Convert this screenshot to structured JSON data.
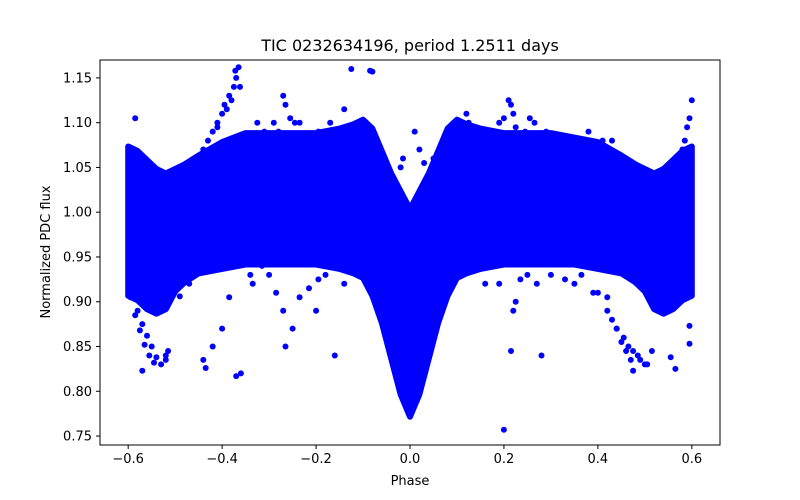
{
  "chart_data": {
    "type": "scatter",
    "title": "TIC 0232634196, period 1.2511 days",
    "xlabel": "Phase",
    "ylabel": "Normalized PDC flux",
    "xlim": [
      -0.66,
      0.66
    ],
    "ylim": [
      0.74,
      1.17
    ],
    "xticks": [
      -0.6,
      -0.4,
      -0.2,
      0.0,
      0.2,
      0.4,
      0.6
    ],
    "xtick_labels": [
      "−0.6",
      "−0.4",
      "−0.2",
      "0.0",
      "0.2",
      "0.4",
      "0.6"
    ],
    "yticks": [
      0.75,
      0.8,
      0.85,
      0.9,
      0.95,
      1.0,
      1.05,
      1.1,
      1.15
    ],
    "ytick_labels": [
      "0.75",
      "0.80",
      "0.85",
      "0.90",
      "0.95",
      "1.00",
      "1.05",
      "1.10",
      "1.15"
    ],
    "grid": false,
    "marker_color": "#0000ff",
    "series": [
      {
        "name": "PDC flux",
        "bands": [
          [
            -0.6,
            0.91,
            1.07
          ],
          [
            -0.58,
            0.905,
            1.065
          ],
          [
            -0.56,
            0.895,
            1.055
          ],
          [
            -0.54,
            0.89,
            1.045
          ],
          [
            -0.52,
            0.895,
            1.04
          ],
          [
            -0.5,
            0.915,
            1.045
          ],
          [
            -0.48,
            0.925,
            1.05
          ],
          [
            -0.45,
            0.935,
            1.06
          ],
          [
            -0.4,
            0.94,
            1.075
          ],
          [
            -0.35,
            0.945,
            1.085
          ],
          [
            -0.3,
            0.945,
            1.085
          ],
          [
            -0.25,
            0.945,
            1.085
          ],
          [
            -0.2,
            0.945,
            1.085
          ],
          [
            -0.15,
            0.94,
            1.09
          ],
          [
            -0.12,
            0.935,
            1.095
          ],
          [
            -0.1,
            0.93,
            1.1
          ],
          [
            -0.08,
            0.91,
            1.09
          ],
          [
            -0.06,
            0.88,
            1.065
          ],
          [
            -0.04,
            0.84,
            1.04
          ],
          [
            -0.02,
            0.8,
            1.02
          ],
          [
            0.0,
            0.775,
            1.0
          ],
          [
            0.02,
            0.8,
            1.02
          ],
          [
            0.04,
            0.84,
            1.04
          ],
          [
            0.06,
            0.88,
            1.065
          ],
          [
            0.08,
            0.91,
            1.09
          ],
          [
            0.1,
            0.93,
            1.1
          ],
          [
            0.12,
            0.935,
            1.095
          ],
          [
            0.15,
            0.94,
            1.09
          ],
          [
            0.2,
            0.945,
            1.085
          ],
          [
            0.25,
            0.945,
            1.085
          ],
          [
            0.3,
            0.945,
            1.085
          ],
          [
            0.35,
            0.945,
            1.08
          ],
          [
            0.4,
            0.94,
            1.075
          ],
          [
            0.45,
            0.935,
            1.06
          ],
          [
            0.48,
            0.925,
            1.05
          ],
          [
            0.5,
            0.915,
            1.045
          ],
          [
            0.52,
            0.895,
            1.04
          ],
          [
            0.54,
            0.89,
            1.045
          ],
          [
            0.56,
            0.895,
            1.055
          ],
          [
            0.58,
            0.905,
            1.065
          ],
          [
            0.6,
            0.91,
            1.07
          ]
        ],
        "points": [
          [
            -0.598,
            0.92
          ],
          [
            -0.59,
            0.905
          ],
          [
            -0.58,
            0.89
          ],
          [
            -0.57,
            0.875
          ],
          [
            -0.56,
            0.862
          ],
          [
            -0.55,
            0.85
          ],
          [
            -0.54,
            0.838
          ],
          [
            -0.53,
            0.83
          ],
          [
            -0.52,
            0.835
          ],
          [
            -0.515,
            0.845
          ],
          [
            -0.595,
            0.905
          ],
          [
            -0.585,
            0.885
          ],
          [
            -0.575,
            0.868
          ],
          [
            -0.565,
            0.852
          ],
          [
            -0.555,
            0.84
          ],
          [
            -0.545,
            0.832
          ],
          [
            -0.57,
            0.823
          ],
          [
            -0.52,
            0.84
          ],
          [
            -0.585,
            1.105
          ],
          [
            -0.56,
            1.04
          ],
          [
            -0.5,
            1.045
          ],
          [
            -0.48,
            1.03
          ],
          [
            -0.46,
            1.045
          ],
          [
            -0.44,
            1.07
          ],
          [
            -0.43,
            1.08
          ],
          [
            -0.42,
            1.09
          ],
          [
            -0.41,
            1.1
          ],
          [
            -0.4,
            1.11
          ],
          [
            -0.395,
            1.12
          ],
          [
            -0.385,
            1.13
          ],
          [
            -0.375,
            1.14
          ],
          [
            -0.37,
            1.15
          ],
          [
            -0.365,
            1.162
          ],
          [
            -0.372,
            1.158
          ],
          [
            -0.362,
            1.14
          ],
          [
            -0.38,
            1.125
          ],
          [
            -0.39,
            1.115
          ],
          [
            -0.41,
            1.095
          ],
          [
            -0.33,
            1.08
          ],
          [
            -0.325,
            1.1
          ],
          [
            -0.31,
            1.09
          ],
          [
            -0.27,
            1.13
          ],
          [
            -0.265,
            1.12
          ],
          [
            -0.255,
            1.105
          ],
          [
            -0.245,
            1.1
          ],
          [
            -0.235,
            1.1
          ],
          [
            -0.29,
            1.1
          ],
          [
            -0.28,
            1.09
          ],
          [
            -0.195,
            1.09
          ],
          [
            -0.21,
            1.08
          ],
          [
            -0.17,
            1.1
          ],
          [
            -0.16,
            1.09
          ],
          [
            -0.14,
            1.115
          ],
          [
            -0.125,
            1.16
          ],
          [
            -0.085,
            1.158
          ],
          [
            -0.08,
            1.157
          ],
          [
            -0.49,
            0.906
          ],
          [
            -0.47,
            0.92
          ],
          [
            -0.44,
            0.835
          ],
          [
            -0.435,
            0.826
          ],
          [
            -0.42,
            0.85
          ],
          [
            -0.4,
            0.87
          ],
          [
            -0.385,
            0.905
          ],
          [
            -0.37,
            0.817
          ],
          [
            -0.36,
            0.82
          ],
          [
            -0.34,
            0.93
          ],
          [
            -0.335,
            0.92
          ],
          [
            -0.315,
            0.94
          ],
          [
            -0.3,
            0.93
          ],
          [
            -0.285,
            0.91
          ],
          [
            -0.27,
            0.89
          ],
          [
            -0.265,
            0.85
          ],
          [
            -0.25,
            0.87
          ],
          [
            -0.235,
            0.905
          ],
          [
            -0.215,
            0.915
          ],
          [
            -0.2,
            0.89
          ],
          [
            -0.195,
            0.925
          ],
          [
            -0.18,
            0.93
          ],
          [
            -0.16,
            0.84
          ],
          [
            -0.14,
            0.92
          ],
          [
            -0.12,
            0.935
          ],
          [
            -0.1,
            0.95
          ],
          [
            -0.07,
            0.975
          ],
          [
            -0.05,
            0.97
          ],
          [
            -0.03,
            0.96
          ],
          [
            -0.02,
            1.05
          ],
          [
            -0.015,
            1.06
          ],
          [
            0.01,
            1.09
          ],
          [
            0.02,
            1.07
          ],
          [
            0.03,
            1.055
          ],
          [
            0.05,
            1.06
          ],
          [
            0.045,
            1.04
          ],
          [
            0.04,
            0.93
          ],
          [
            0.055,
            0.92
          ],
          [
            0.07,
            0.97
          ],
          [
            0.08,
            0.965
          ],
          [
            0.095,
            0.93
          ],
          [
            0.12,
            1.11
          ],
          [
            0.125,
            1.1
          ],
          [
            0.16,
            1.09
          ],
          [
            0.18,
            1.06
          ],
          [
            0.19,
            1.1
          ],
          [
            0.2,
            1.105
          ],
          [
            0.21,
            1.125
          ],
          [
            0.215,
            1.12
          ],
          [
            0.22,
            1.11
          ],
          [
            0.225,
            1.095
          ],
          [
            0.235,
            1.085
          ],
          [
            0.245,
            1.09
          ],
          [
            0.255,
            1.105
          ],
          [
            0.265,
            1.1
          ],
          [
            0.29,
            1.09
          ],
          [
            0.305,
            1.085
          ],
          [
            0.32,
            1.085
          ],
          [
            0.36,
            1.08
          ],
          [
            0.38,
            1.09
          ],
          [
            0.4,
            1.075
          ],
          [
            0.41,
            1.08
          ],
          [
            0.43,
            1.08
          ],
          [
            0.45,
            1.06
          ],
          [
            0.47,
            1.05
          ],
          [
            0.5,
            1.04
          ],
          [
            0.52,
            1.04
          ],
          [
            0.54,
            1.045
          ],
          [
            0.56,
            1.055
          ],
          [
            0.58,
            1.07
          ],
          [
            0.585,
            1.08
          ],
          [
            0.59,
            1.095
          ],
          [
            0.595,
            1.105
          ],
          [
            0.6,
            1.125
          ],
          [
            0.2,
            0.757
          ],
          [
            0.215,
            0.845
          ],
          [
            0.22,
            0.89
          ],
          [
            0.225,
            0.9
          ],
          [
            0.235,
            0.925
          ],
          [
            0.19,
            0.92
          ],
          [
            0.18,
            0.94
          ],
          [
            0.16,
            0.92
          ],
          [
            0.14,
            0.94
          ],
          [
            0.28,
            0.84
          ],
          [
            0.25,
            0.93
          ],
          [
            0.27,
            0.92
          ],
          [
            0.3,
            0.93
          ],
          [
            0.33,
            0.925
          ],
          [
            0.35,
            0.92
          ],
          [
            0.365,
            0.93
          ],
          [
            0.39,
            0.91
          ],
          [
            0.4,
            0.91
          ],
          [
            0.42,
            0.905
          ],
          [
            0.44,
            0.87
          ],
          [
            0.455,
            0.86
          ],
          [
            0.465,
            0.85
          ],
          [
            0.475,
            0.845
          ],
          [
            0.485,
            0.84
          ],
          [
            0.49,
            0.835
          ],
          [
            0.5,
            0.83
          ],
          [
            0.505,
            0.83
          ],
          [
            0.515,
            0.845
          ],
          [
            0.475,
            0.823
          ],
          [
            0.47,
            0.835
          ],
          [
            0.46,
            0.845
          ],
          [
            0.45,
            0.855
          ],
          [
            0.44,
            0.87
          ],
          [
            0.43,
            0.88
          ],
          [
            0.42,
            0.89
          ],
          [
            0.555,
            0.838
          ],
          [
            0.565,
            0.825
          ],
          [
            0.585,
            0.955
          ],
          [
            0.59,
            0.945
          ],
          [
            0.595,
            0.873
          ],
          [
            0.595,
            0.853
          ]
        ]
      }
    ]
  }
}
